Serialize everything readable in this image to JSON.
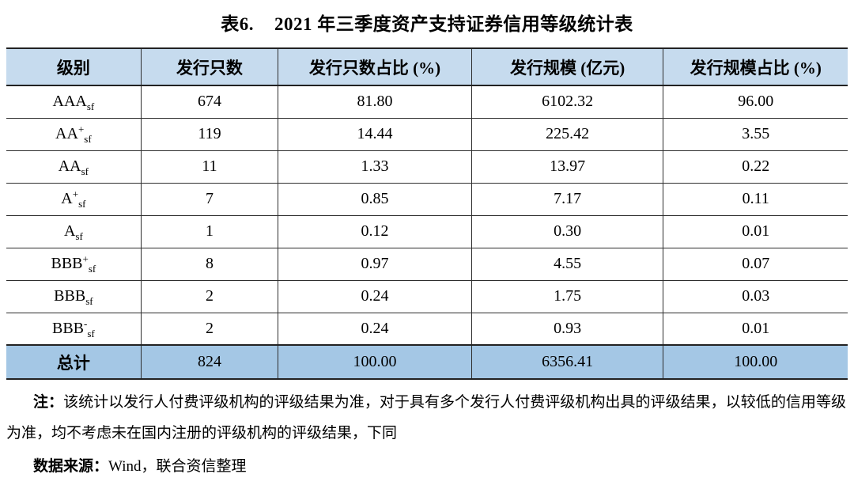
{
  "caption": {
    "label": "表6.",
    "text": "2021 年三季度资产支持证券信用等级统计表"
  },
  "table": {
    "columns": [
      "级别",
      "发行只数",
      "发行只数占比 (%)",
      "发行规模 (亿元)",
      "发行规模占比 (%)"
    ],
    "rows": [
      {
        "grade": {
          "base": "AAA",
          "sup": "",
          "sub": "sf"
        },
        "values": [
          "674",
          "81.80",
          "6102.32",
          "96.00"
        ]
      },
      {
        "grade": {
          "base": "AA",
          "sup": "+",
          "sub": "sf"
        },
        "values": [
          "119",
          "14.44",
          "225.42",
          "3.55"
        ]
      },
      {
        "grade": {
          "base": "AA",
          "sup": "",
          "sub": "sf"
        },
        "values": [
          "11",
          "1.33",
          "13.97",
          "0.22"
        ]
      },
      {
        "grade": {
          "base": "A",
          "sup": "+",
          "sub": "sf"
        },
        "values": [
          "7",
          "0.85",
          "7.17",
          "0.11"
        ]
      },
      {
        "grade": {
          "base": "A",
          "sup": "",
          "sub": "sf"
        },
        "values": [
          "1",
          "0.12",
          "0.30",
          "0.01"
        ]
      },
      {
        "grade": {
          "base": "BBB",
          "sup": "+",
          "sub": "sf"
        },
        "values": [
          "8",
          "0.97",
          "4.55",
          "0.07"
        ]
      },
      {
        "grade": {
          "base": "BBB",
          "sup": "",
          "sub": "sf"
        },
        "values": [
          "2",
          "0.24",
          "1.75",
          "0.03"
        ]
      },
      {
        "grade": {
          "base": "BBB",
          "sup": "-",
          "sub": "sf"
        },
        "values": [
          "2",
          "0.24",
          "0.93",
          "0.01"
        ]
      }
    ],
    "total": {
      "label": "总计",
      "values": [
        "824",
        "100.00",
        "6356.41",
        "100.00"
      ]
    }
  },
  "notes": {
    "note_label": "注：",
    "note_text": "该统计以发行人付费评级机构的评级结果为准，对于具有多个发行人付费评级机构出具的评级结果，以较低的信用等级为准，均不考虑未在国内注册的评级机构的评级结果，下同",
    "source_label": "数据来源：",
    "source_text": "Wind，联合资信整理"
  },
  "colors": {
    "header_bg": "#c6dbee",
    "total_bg": "#a4c7e5",
    "border": "#222222"
  }
}
